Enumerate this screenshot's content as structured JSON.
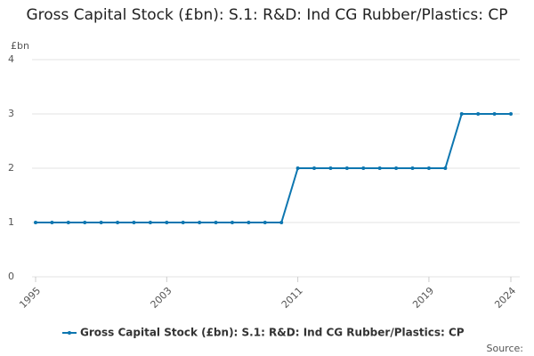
{
  "chart_data": {
    "type": "line",
    "title": "Gross Capital Stock (£bn): S.1: R&D: Ind CG Rubber/Plastics: CP",
    "y_label": "£bn",
    "source": "Source:",
    "x": [
      1995,
      1996,
      1997,
      1998,
      1999,
      2000,
      2001,
      2002,
      2003,
      2004,
      2005,
      2006,
      2007,
      2008,
      2009,
      2010,
      2011,
      2012,
      2013,
      2014,
      2015,
      2016,
      2017,
      2018,
      2019,
      2020,
      2021,
      2022,
      2023,
      2024
    ],
    "series": [
      {
        "name": "Gross Capital Stock (£bn): S.1: R&D: Ind CG Rubber/Plastics: CP",
        "color": "#0d76b0",
        "values": [
          1,
          1,
          1,
          1,
          1,
          1,
          1,
          1,
          1,
          1,
          1,
          1,
          1,
          1,
          1,
          1,
          2,
          2,
          2,
          2,
          2,
          2,
          2,
          2,
          2,
          2,
          3,
          3,
          3,
          3
        ]
      }
    ],
    "xlim": [
      1995,
      2024
    ],
    "xticks": [
      1995,
      2003,
      2011,
      2019,
      2024
    ],
    "ylim": [
      0,
      4
    ],
    "yticks": [
      0,
      1,
      2,
      3,
      4
    ],
    "grid": true
  }
}
